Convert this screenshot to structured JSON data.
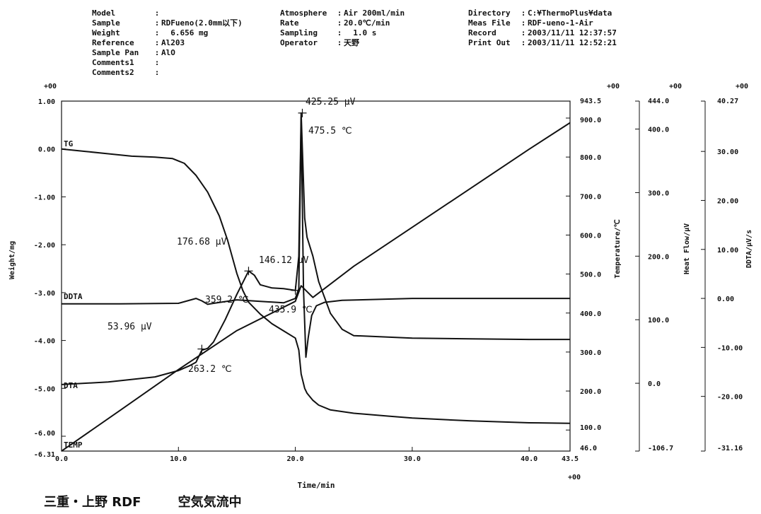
{
  "header": {
    "col1": [
      {
        "label": "Model",
        "value": ""
      },
      {
        "label": "Sample",
        "value": "RDFueno(2.0mm以下)"
      },
      {
        "label": "Weight",
        "value": "  6.656 mg"
      },
      {
        "label": "Reference",
        "value": "Al203"
      },
      {
        "label": "Sample Pan",
        "value": "AlO"
      },
      {
        "label": "Comments1",
        "value": ""
      },
      {
        "label": "Comments2",
        "value": ""
      }
    ],
    "col2": [
      {
        "label": "Atmosphere",
        "value": "Air 200ml/min"
      },
      {
        "label": "Rate",
        "value": "20.0℃/min"
      },
      {
        "label": "Sampling",
        "value": "  1.0 s"
      },
      {
        "label": "Operator",
        "value": "天野"
      }
    ],
    "col3": [
      {
        "label": "Directory",
        "value": "C:¥ThermoPlus¥data"
      },
      {
        "label": "Meas File",
        "value": "RDF-ueno-1-Air"
      },
      {
        "label": "Record",
        "value": "2003/11/11 12:37:57"
      },
      {
        "label": "Print Out",
        "value": "2003/11/11 12:52:21"
      }
    ]
  },
  "footer": {
    "left": "三重・上野 RDF",
    "right": "空気気流中"
  },
  "chart_data": {
    "type": "line",
    "xlabel": "Time/min",
    "x_ticks": [
      "0.0",
      "10.0",
      "20.0",
      "30.0",
      "40.0",
      "43.5"
    ],
    "x_multiplier": "+00",
    "xlim": [
      0,
      43.5
    ],
    "axes": {
      "weight": {
        "label": "Weight/mg",
        "multiplier": "+00",
        "ylim": [
          -6.31,
          1.0
        ],
        "ticks": [
          "1.00",
          "0.00",
          "-1.00",
          "-2.00",
          "-3.00",
          "-4.00",
          "-5.00",
          "-6.00",
          "-6.31"
        ]
      },
      "temperature": {
        "label": "Temperature/℃",
        "multiplier": "+00",
        "ylim": [
          46.0,
          943.5
        ],
        "ticks": [
          "943.5",
          "900.0",
          "800.0",
          "700.0",
          "600.0",
          "500.0",
          "400.0",
          "300.0",
          "200.0",
          "100.0",
          "46.0"
        ]
      },
      "heat_flow": {
        "label": "Heat Flow/μV",
        "multiplier": "+00",
        "ylim": [
          -106.7,
          444.0
        ],
        "ticks": [
          "444.0",
          "400.0",
          "300.0",
          "200.0",
          "100.0",
          "0.0",
          "-106.7"
        ]
      },
      "ddta": {
        "label": "DDTA/μV/s",
        "multiplier": "+00",
        "ylim": [
          -31.16,
          40.27
        ],
        "ticks": [
          "40.27",
          "30.00",
          "20.00",
          "10.00",
          "0.00",
          "-10.00",
          "-20.00",
          "-31.16"
        ]
      }
    },
    "series": [
      {
        "name": "TG",
        "axis": "weight",
        "x": [
          0,
          2,
          4,
          6,
          8,
          9.5,
          10.5,
          11.5,
          12.5,
          13.5,
          14.2,
          15,
          15.5,
          16,
          17,
          18,
          19,
          20,
          20.3,
          20.5,
          20.8,
          21,
          21.5,
          22,
          23,
          25,
          28,
          30,
          35,
          40,
          43.5
        ],
        "y": [
          0.0,
          -0.05,
          -0.1,
          -0.15,
          -0.17,
          -0.2,
          -0.3,
          -0.55,
          -0.9,
          -1.4,
          -1.9,
          -2.6,
          -2.95,
          -3.2,
          -3.45,
          -3.65,
          -3.8,
          -3.95,
          -4.2,
          -4.7,
          -5.0,
          -5.1,
          -5.25,
          -5.35,
          -5.45,
          -5.52,
          -5.58,
          -5.62,
          -5.68,
          -5.72,
          -5.73
        ]
      },
      {
        "name": "DDTA",
        "axis": "ddta",
        "x": [
          0,
          5,
          10,
          11.5,
          12,
          12.5,
          13,
          15,
          17,
          19,
          20,
          20.3,
          20.5,
          20.7,
          20.9,
          21.1,
          21.4,
          21.8,
          22.5,
          24,
          30,
          40,
          43.5
        ],
        "y": [
          -1.1,
          -1.1,
          -1.0,
          0.0,
          -0.5,
          -1.2,
          -1.0,
          -0.3,
          -0.6,
          -0.9,
          0.0,
          2.0,
          37.0,
          2.0,
          -12.0,
          -8.0,
          -3.5,
          -1.5,
          -0.8,
          -0.4,
          0.0,
          0.0,
          0.0
        ]
      },
      {
        "name": "DTA",
        "axis": "heat_flow",
        "x": [
          0,
          4,
          8,
          10,
          11,
          11.5,
          12,
          12.5,
          13,
          14,
          15,
          16,
          16.5,
          17,
          18,
          19,
          20,
          20.3,
          20.5,
          20.8,
          21,
          21.5,
          22,
          23,
          24,
          25,
          30,
          35,
          40,
          43.5
        ],
        "y": [
          -2,
          2,
          10,
          20,
          28,
          33,
          52,
          55,
          65,
          100,
          140,
          176.68,
          170,
          155,
          150,
          149,
          146.12,
          200,
          425.25,
          260,
          230,
          200,
          160,
          110,
          85,
          75,
          71,
          70,
          69,
          69
        ]
      },
      {
        "name": "TEMP",
        "axis": "temperature",
        "x": [
          0,
          5,
          10,
          15,
          20,
          20.5,
          21.5,
          25,
          30,
          35,
          40,
          43.5
        ],
        "y": [
          46.0,
          150.0,
          255.0,
          355.0,
          430.0,
          470.0,
          440.0,
          520.0,
          620.0,
          720.0,
          820.0,
          888.0
        ]
      }
    ],
    "annotations": [
      {
        "text": "425.25 μV",
        "x": 20.6,
        "y": 425.25,
        "axis": "heat_flow"
      },
      {
        "text": "475.5 ℃",
        "x": 20.6,
        "y": 475.5,
        "axis": "temperature"
      },
      {
        "text": "176.68 μV",
        "x": 16.0,
        "y": 176.68,
        "axis": "heat_flow"
      },
      {
        "text": "146.12 μV",
        "x": 20.0,
        "y": 146.12,
        "axis": "heat_flow"
      },
      {
        "text": "359.2 ℃",
        "x": 16.0,
        "y": 359.2,
        "axis": "temperature"
      },
      {
        "text": "435.9 ℃",
        "x": 20.0,
        "y": 435.9,
        "axis": "temperature"
      },
      {
        "text": "53.96 μV",
        "x": 12.0,
        "y": 53.96,
        "axis": "heat_flow"
      },
      {
        "text": "263.2 ℃",
        "x": 12.0,
        "y": 263.2,
        "axis": "temperature"
      }
    ],
    "grid": false,
    "legend": "inline"
  }
}
